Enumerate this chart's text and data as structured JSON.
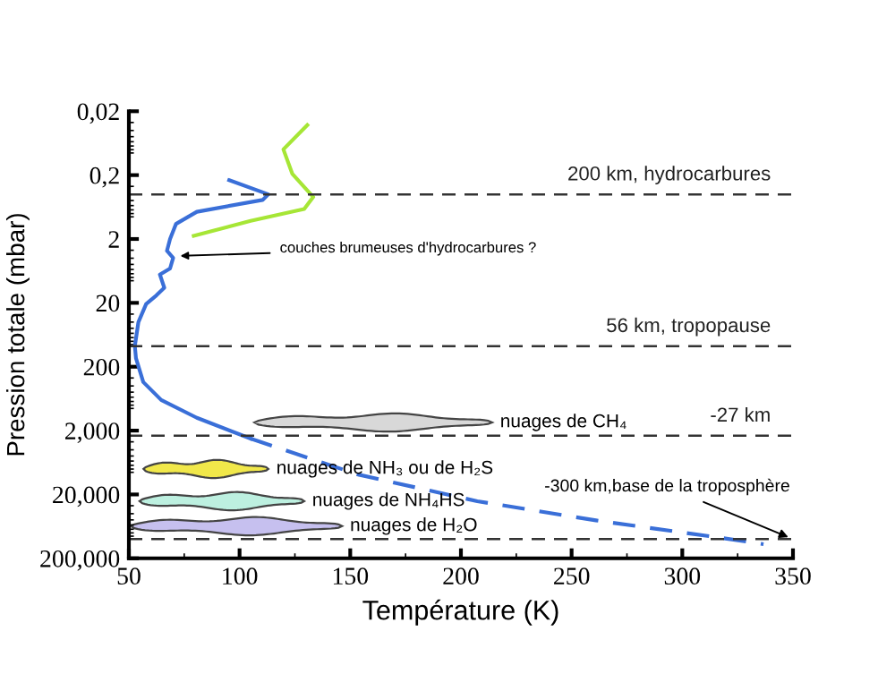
{
  "chart_data": {
    "type": "line",
    "xlabel": "Température (K)",
    "ylabel": "Pression totale (mbar)",
    "log": "y",
    "grid": false,
    "legend": false,
    "marker": "none",
    "xlim": [
      50,
      350
    ],
    "xticks": [
      50,
      100,
      150,
      200,
      250,
      300,
      350
    ],
    "ylim": [
      200000,
      0.02
    ],
    "yticks": [
      {
        "value": 0.02,
        "label": "0,02"
      },
      {
        "value": 0.2,
        "label": "0,2"
      },
      2,
      20,
      200,
      {
        "value": 2000,
        "label": "2,000"
      },
      {
        "value": 20000,
        "label": "20,000"
      },
      {
        "value": 200000,
        "label": "200,000"
      }
    ],
    "series": [
      {
        "color": "#3a6fd8",
        "line_style": "solid",
        "x": [
          95.3,
          113,
          110.4,
          80.7,
          71.3,
          68.6,
          67.2,
          70,
          68.6,
          64,
          66,
          62.4,
          57.8,
          54.3,
          52.7,
          53.2,
          56.5,
          64.6,
          80.7,
          105
        ],
        "values": [
          0.24,
          0.4,
          0.49,
          0.75,
          1.16,
          2.0,
          3.06,
          3.96,
          5.8,
          7.2,
          11.6,
          15.3,
          20.8,
          40,
          95,
          147,
          348,
          663,
          1260,
          2670
        ]
      },
      {
        "color": "#3a6fd8",
        "line_style": "dashed",
        "x": [
          105,
          153.5,
          207.4,
          261,
          315,
          336.7
        ],
        "values": [
          2670,
          9740,
          25550,
          51000,
          92900,
          120000
        ]
      },
      {
        "color": "#a6e636",
        "line_style": "solid",
        "x": [
          130.6,
          119.8,
          123.8,
          133.3,
          129.2,
          105,
          79.3
        ],
        "values": [
          0.033,
          0.079,
          0.19,
          0.44,
          0.68,
          1.04,
          1.79
        ]
      }
    ],
    "ref_lines": [
      {
        "axis": "y",
        "value": 0.4,
        "label": "200 km, hydrocarbures",
        "color": "#333333",
        "line_style": "dashed"
      },
      {
        "axis": "y",
        "value": 95,
        "label": "56 km, tropopause",
        "color": "#333333",
        "line_style": "dashed"
      },
      {
        "axis": "y",
        "value": 2400,
        "label": "-27 km",
        "color": "#333333",
        "line_style": "dashed"
      },
      {
        "axis": "y",
        "value": 100000,
        "color": "#333333",
        "line_style": "dashed"
      }
    ],
    "annotations": [
      {
        "text": "couches brumeuses d'hydrocarbures ?",
        "x": 71,
        "y": 3.7
      },
      {
        "text": "-300 km,base de la troposphère",
        "x": 350,
        "y": 100000
      },
      "nuages de CH₄",
      "nuages de NH₃ ou de H₂S",
      "nuages de NH₄HS",
      "nuages de H₂O"
    ]
  }
}
